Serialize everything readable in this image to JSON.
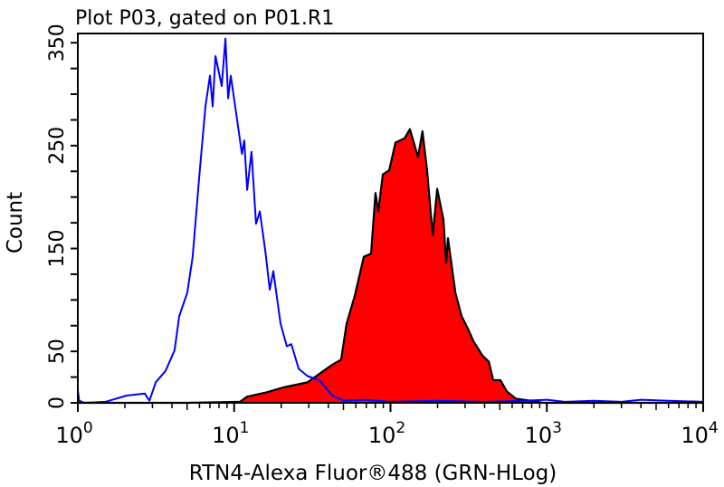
{
  "chart_data": {
    "type": "area",
    "title": "Plot P03, gated on P01.R1",
    "xlabel": "RTN4-Alexa Fluor®488 (GRN-HLog)",
    "ylabel": "Count",
    "x_scale": "log",
    "xlim": [
      1,
      10000
    ],
    "ylim": [
      0,
      359
    ],
    "x_ticks": [
      {
        "base": "10",
        "exp": "0",
        "value": 1
      },
      {
        "base": "10",
        "exp": "1",
        "value": 10
      },
      {
        "base": "10",
        "exp": "2",
        "value": 100
      },
      {
        "base": "10",
        "exp": "3",
        "value": 1000
      },
      {
        "base": "10",
        "exp": "4",
        "value": 10000
      }
    ],
    "y_ticks": [
      "0",
      "50",
      "150",
      "250",
      "350"
    ],
    "y_tick_values": [
      0,
      50,
      150,
      250,
      350
    ],
    "y_minor_step": 25,
    "grid": false,
    "series": [
      {
        "style": "line",
        "color": "#0000ff",
        "x": [
          1.0,
          1.02,
          1.1,
          1.5,
          2.05,
          2.68,
          2.87,
          3.15,
          3.64,
          4.16,
          4.45,
          5.01,
          5.43,
          5.97,
          6.55,
          7.0,
          7.29,
          7.59,
          8.33,
          8.79,
          9.15,
          9.51,
          10.4,
          11.2,
          11.6,
          12.1,
          12.9,
          13.8,
          14.6,
          15.8,
          16.9,
          17.8,
          19.8,
          21.7,
          23.2,
          25.9,
          29.5,
          35.1,
          42.4,
          50.3,
          70,
          100,
          200,
          400,
          700,
          1000,
          1300,
          2000,
          3000,
          4000,
          6000,
          10000
        ],
        "y": [
          12,
          2,
          0,
          1,
          7,
          9,
          2,
          20,
          31,
          51,
          84,
          107,
          142,
          218,
          288,
          318,
          288,
          337,
          308,
          354,
          296,
          318,
          277,
          242,
          255,
          207,
          244,
          174,
          186,
          148,
          110,
          128,
          77,
          55,
          57,
          33,
          26,
          22,
          7,
          2,
          3,
          1,
          2,
          1,
          2,
          3,
          1,
          2,
          1,
          3,
          2,
          1
        ]
      },
      {
        "style": "filled",
        "color": "#ff0000",
        "outline": "#000000",
        "x": [
          1.0,
          5,
          10.9,
          12.1,
          16,
          20.6,
          29.5,
          42.4,
          48.3,
          52.4,
          59.1,
          67.5,
          75.1,
          80.2,
          83.5,
          89.3,
          98.0,
          107.6,
          123,
          133,
          150,
          160,
          171,
          186,
          199,
          218,
          227,
          233,
          260,
          285,
          313,
          339,
          387,
          425,
          454,
          505,
          555,
          634,
          794,
          945,
          2000,
          10000
        ],
        "y": [
          0,
          0,
          1,
          6,
          10,
          15,
          20,
          37,
          42,
          77,
          104,
          142,
          145,
          204,
          186,
          222,
          226,
          253,
          257,
          266,
          239,
          264,
          227,
          163,
          208,
          178,
          136,
          160,
          107,
          84,
          72,
          60,
          46,
          40,
          22,
          22,
          11,
          4,
          2,
          0,
          0,
          0
        ]
      }
    ]
  }
}
